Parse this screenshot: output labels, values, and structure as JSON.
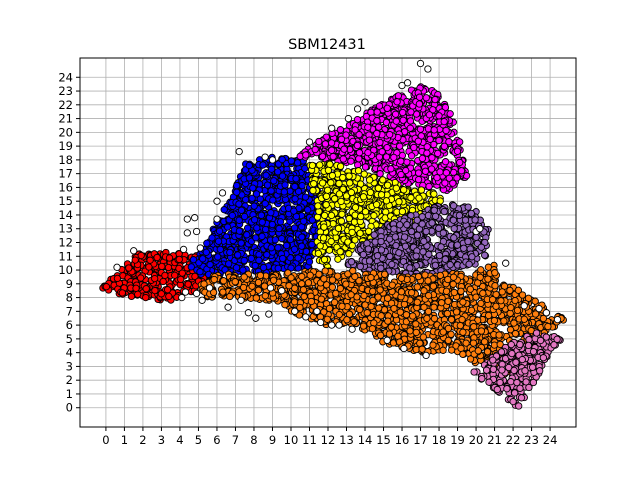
{
  "chart_data": {
    "type": "scatter",
    "title": "SBM12431",
    "xlabel": "",
    "ylabel": "",
    "xlim": [
      -1.4,
      25.4
    ],
    "ylim": [
      -1.4,
      25.4
    ],
    "x_ticks": [
      "0",
      "1",
      "2",
      "3",
      "4",
      "5",
      "6",
      "7",
      "8",
      "9",
      "10",
      "11",
      "12",
      "13",
      "14",
      "15",
      "16",
      "17",
      "18",
      "19",
      "20",
      "21",
      "22",
      "23",
      "24"
    ],
    "y_ticks": [
      "0",
      "1",
      "2",
      "3",
      "4",
      "5",
      "6",
      "7",
      "8",
      "9",
      "10",
      "11",
      "12",
      "13",
      "14",
      "15",
      "16",
      "17",
      "18",
      "19",
      "20",
      "21",
      "22",
      "23",
      "24"
    ],
    "grid": true,
    "legend": "none",
    "marker": "circle, black edge",
    "clusters": [
      {
        "color": "#ff0000",
        "polygon": [
          [
            -0.2,
            8.7
          ],
          [
            0.6,
            9.9
          ],
          [
            1.8,
            11.2
          ],
          [
            3.5,
            11.3
          ],
          [
            5.2,
            11.0
          ],
          [
            5.4,
            9.5
          ],
          [
            4.8,
            8.4
          ],
          [
            3.5,
            7.8
          ],
          [
            2.0,
            7.9
          ],
          [
            0.5,
            8.2
          ]
        ]
      },
      {
        "color": "#0000ff",
        "polygon": [
          [
            4.2,
            10.0
          ],
          [
            5.4,
            12.0
          ],
          [
            6.2,
            14.0
          ],
          [
            7.0,
            16.0
          ],
          [
            7.4,
            17.8
          ],
          [
            9.0,
            18.2
          ],
          [
            10.6,
            18.1
          ],
          [
            11.6,
            16.0
          ],
          [
            12.2,
            14.0
          ],
          [
            11.8,
            12.0
          ],
          [
            11.0,
            10.2
          ],
          [
            9.0,
            9.8
          ],
          [
            7.0,
            9.8
          ],
          [
            5.2,
            9.6
          ]
        ]
      },
      {
        "color": "#ff00ff",
        "polygon": [
          [
            10.4,
            18.2
          ],
          [
            11.5,
            19.5
          ],
          [
            13.0,
            20.4
          ],
          [
            14.2,
            21.5
          ],
          [
            15.6,
            22.6
          ],
          [
            16.8,
            23.4
          ],
          [
            17.8,
            23.2
          ],
          [
            18.6,
            21.5
          ],
          [
            19.2,
            19.0
          ],
          [
            19.5,
            16.8
          ],
          [
            18.3,
            15.6
          ],
          [
            16.0,
            16.2
          ],
          [
            14.0,
            17.5
          ],
          [
            12.0,
            18.0
          ]
        ]
      },
      {
        "color": "#ffff00",
        "polygon": [
          [
            11.2,
            11.0
          ],
          [
            11.6,
            13.0
          ],
          [
            11.2,
            15.0
          ],
          [
            11.0,
            17.6
          ],
          [
            12.5,
            17.8
          ],
          [
            14.5,
            16.8
          ],
          [
            16.5,
            16.0
          ],
          [
            18.0,
            15.5
          ],
          [
            18.4,
            14.4
          ],
          [
            17.0,
            13.5
          ],
          [
            15.0,
            12.8
          ],
          [
            13.0,
            11.0
          ],
          [
            12.0,
            10.2
          ]
        ]
      },
      {
        "color": "#9467bd",
        "polygon": [
          [
            13.0,
            10.4
          ],
          [
            14.0,
            12.2
          ],
          [
            15.5,
            13.6
          ],
          [
            17.0,
            14.2
          ],
          [
            18.4,
            14.9
          ],
          [
            19.8,
            14.6
          ],
          [
            20.8,
            12.8
          ],
          [
            20.6,
            11.0
          ],
          [
            19.5,
            10.0
          ],
          [
            17.0,
            9.6
          ],
          [
            14.5,
            9.8
          ]
        ]
      },
      {
        "color": "#ff7f0e",
        "polygon": [
          [
            4.8,
            9.0
          ],
          [
            6.0,
            9.7
          ],
          [
            9.0,
            9.7
          ],
          [
            11.5,
            10.0
          ],
          [
            13.0,
            10.0
          ],
          [
            16.0,
            9.6
          ],
          [
            19.5,
            9.8
          ],
          [
            21.0,
            10.6
          ],
          [
            21.2,
            9.0
          ],
          [
            22.5,
            8.6
          ],
          [
            23.4,
            7.6
          ],
          [
            24.8,
            6.4
          ],
          [
            23.8,
            5.4
          ],
          [
            23.0,
            3.0
          ],
          [
            21.5,
            2.2
          ],
          [
            20.0,
            3.2
          ],
          [
            18.5,
            4.2
          ],
          [
            17.0,
            4.0
          ],
          [
            15.2,
            4.6
          ],
          [
            13.5,
            5.8
          ],
          [
            12.0,
            6.0
          ],
          [
            10.5,
            6.6
          ],
          [
            9.5,
            7.4
          ],
          [
            8.5,
            7.8
          ],
          [
            7.0,
            8.0
          ],
          [
            5.5,
            8.0
          ]
        ]
      },
      {
        "color": "#e377c2",
        "polygon": [
          [
            20.5,
            3.3
          ],
          [
            21.8,
            4.8
          ],
          [
            23.0,
            5.5
          ],
          [
            24.0,
            5.3
          ],
          [
            24.6,
            5.0
          ],
          [
            23.8,
            3.5
          ],
          [
            23.0,
            1.5
          ],
          [
            22.3,
            0.0
          ],
          [
            21.4,
            0.8
          ],
          [
            20.8,
            1.6
          ],
          [
            19.8,
            2.5
          ]
        ]
      }
    ],
    "outliers": [
      [
        17.0,
        25.0
      ],
      [
        17.4,
        24.6
      ],
      [
        16.0,
        23.4
      ],
      [
        16.3,
        23.6
      ],
      [
        14.0,
        22.2
      ],
      [
        13.6,
        21.7
      ],
      [
        13.1,
        21.0
      ],
      [
        12.2,
        20.3
      ],
      [
        11.0,
        19.3
      ],
      [
        7.2,
        18.6
      ],
      [
        8.6,
        18.2
      ],
      [
        9.0,
        18.0
      ],
      [
        6.3,
        15.6
      ],
      [
        6.0,
        15.0
      ],
      [
        4.8,
        13.8
      ],
      [
        4.4,
        13.7
      ],
      [
        6.0,
        13.7
      ],
      [
        4.9,
        12.8
      ],
      [
        4.4,
        12.7
      ],
      [
        5.1,
        11.6
      ],
      [
        4.2,
        11.5
      ],
      [
        1.5,
        11.4
      ],
      [
        0.6,
        10.2
      ],
      [
        4.3,
        8.4
      ],
      [
        4.9,
        8.3
      ],
      [
        5.6,
        8.7
      ],
      [
        5.2,
        7.8
      ],
      [
        7.3,
        7.8
      ],
      [
        6.6,
        7.3
      ],
      [
        7.7,
        6.9
      ],
      [
        8.8,
        6.8
      ],
      [
        8.1,
        6.5
      ],
      [
        10.2,
        7.0
      ],
      [
        10.8,
        6.6
      ],
      [
        11.6,
        6.2
      ],
      [
        12.2,
        6.0
      ],
      [
        13.3,
        5.7
      ],
      [
        15.2,
        4.9
      ],
      [
        16.1,
        4.3
      ],
      [
        17.3,
        3.8
      ],
      [
        20.0,
        12.8
      ],
      [
        20.2,
        13.0
      ],
      [
        22.6,
        7.4
      ],
      [
        23.4,
        7.2
      ],
      [
        24.4,
        6.4
      ],
      [
        23.8,
        6.9
      ],
      [
        21.6,
        10.5
      ],
      [
        11.4,
        7.0
      ],
      [
        9.5,
        8.5
      ],
      [
        8.9,
        8.7
      ],
      [
        4.1,
        8.0
      ],
      [
        12.6,
        6.0
      ]
    ]
  }
}
